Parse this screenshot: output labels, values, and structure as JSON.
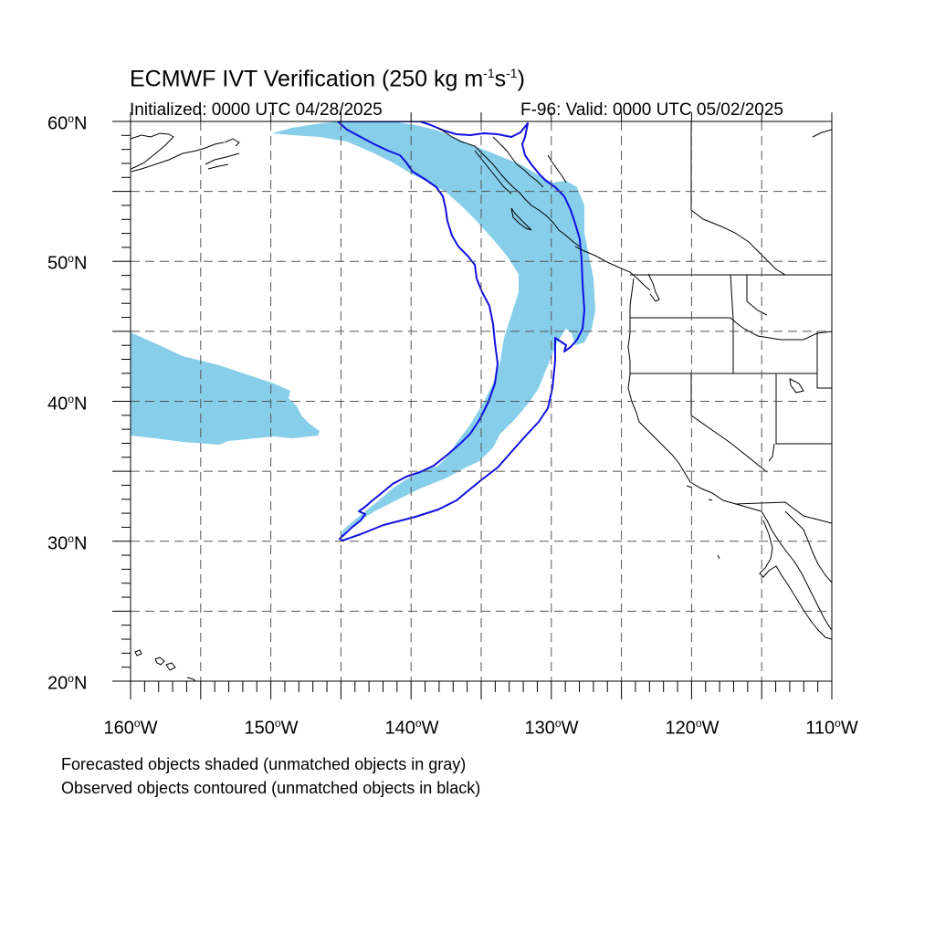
{
  "title": {
    "main": "ECMWF IVT Verification (250 kg m",
    "sup1": "-1",
    "mid": "s",
    "sup2": "-1",
    "end": ")"
  },
  "init_text": "Initialized: 0000 UTC 04/28/2025",
  "valid_text": "F-96: Valid: 0000 UTC 05/02/2025",
  "lat_labels": [
    {
      "value": "60",
      "suffix": "N"
    },
    {
      "value": "50",
      "suffix": "N"
    },
    {
      "value": "40",
      "suffix": "N"
    },
    {
      "value": "30",
      "suffix": "N"
    },
    {
      "value": "20",
      "suffix": "N"
    }
  ],
  "lon_labels": [
    {
      "value": "160",
      "suffix": "W"
    },
    {
      "value": "150",
      "suffix": "W"
    },
    {
      "value": "140",
      "suffix": "W"
    },
    {
      "value": "130",
      "suffix": "W"
    },
    {
      "value": "120",
      "suffix": "W"
    },
    {
      "value": "110",
      "suffix": "W"
    }
  ],
  "footer": {
    "line1": "Forecasted objects shaded (unmatched objects in gray)",
    "line2": "Observed objects contoured (unmatched objects in black)"
  },
  "colors": {
    "forecast_fill": "#87ceeb",
    "observed_contour": "#1010e0",
    "grid": "#555555"
  }
}
